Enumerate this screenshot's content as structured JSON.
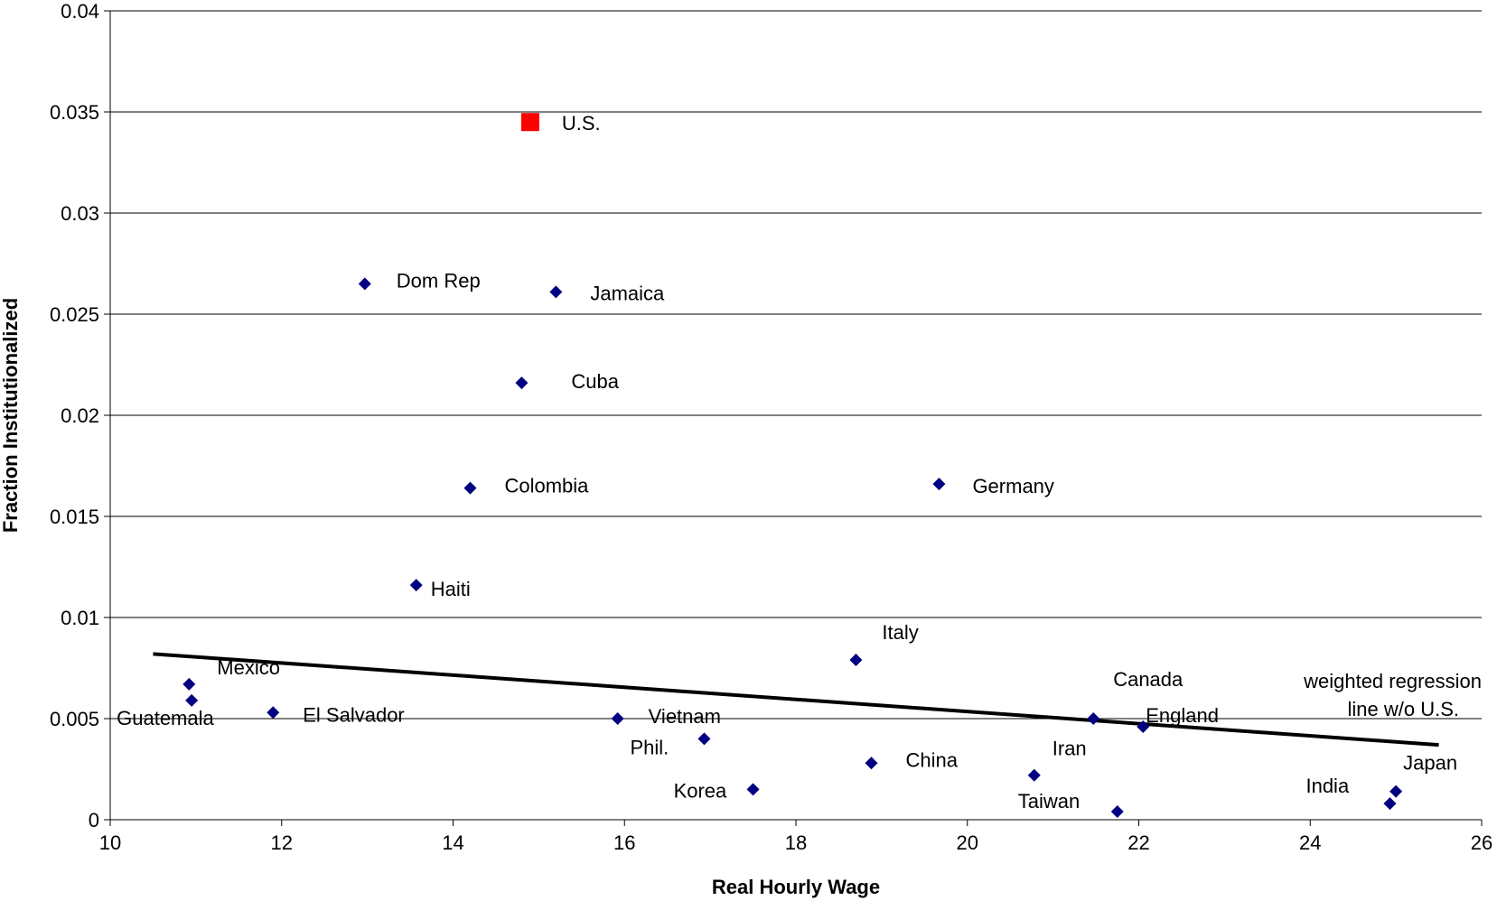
{
  "chart_data": {
    "type": "scatter",
    "xlabel": "Real Hourly Wage",
    "ylabel": "Fraction Institutionalized",
    "xlim": [
      10,
      26
    ],
    "ylim": [
      0,
      0.04
    ],
    "x_ticks": [
      "10",
      "12",
      "14",
      "16",
      "18",
      "20",
      "22",
      "24",
      "26"
    ],
    "y_ticks": [
      "0",
      "0.005",
      "0.01",
      "0.015",
      "0.02",
      "0.025",
      "0.03",
      "0.035",
      "0.04"
    ],
    "grid": "horizontal",
    "series": [
      {
        "marker": "diamond",
        "color": "#000080",
        "points": [
          {
            "label": "Dom Rep",
            "x": 12.97,
            "y": 0.0265
          },
          {
            "label": "Jamaica",
            "x": 15.2,
            "y": 0.0261
          },
          {
            "label": "Cuba",
            "x": 14.8,
            "y": 0.0216
          },
          {
            "label": "Colombia",
            "x": 14.2,
            "y": 0.0164
          },
          {
            "label": "Germany",
            "x": 19.67,
            "y": 0.0166
          },
          {
            "label": "Haiti",
            "x": 13.57,
            "y": 0.0116
          },
          {
            "label": "Italy",
            "x": 18.7,
            "y": 0.0079
          },
          {
            "label": "Mexico",
            "x": 10.92,
            "y": 0.0067
          },
          {
            "label": "Guatemala",
            "x": 10.95,
            "y": 0.0059
          },
          {
            "label": "El Salvador",
            "x": 11.9,
            "y": 0.0053
          },
          {
            "label": "Vietnam",
            "x": 15.92,
            "y": 0.005
          },
          {
            "label": "Phil.",
            "x": 16.93,
            "y": 0.004
          },
          {
            "label": "Korea",
            "x": 17.5,
            "y": 0.0015
          },
          {
            "label": "China",
            "x": 18.88,
            "y": 0.0028
          },
          {
            "label": "Canada",
            "x": 21.47,
            "y": 0.005
          },
          {
            "label": "England",
            "x": 22.05,
            "y": 0.0046
          },
          {
            "label": "Iran",
            "x": 20.78,
            "y": 0.0022
          },
          {
            "label": "Taiwan",
            "x": 21.75,
            "y": 0.0004
          },
          {
            "label": "India",
            "x": 24.93,
            "y": 0.0008
          },
          {
            "label": "Japan",
            "x": 25.0,
            "y": 0.0014
          }
        ]
      },
      {
        "marker": "square",
        "color": "#ff0000",
        "points": [
          {
            "label": "U.S.",
            "x": 14.9,
            "y": 0.0345
          }
        ]
      }
    ],
    "regression_line": {
      "label": "weighted regression line w/o U.S.",
      "color": "#000000",
      "x": [
        10.5,
        25.5
      ],
      "y": [
        0.0082,
        0.0037
      ]
    }
  }
}
